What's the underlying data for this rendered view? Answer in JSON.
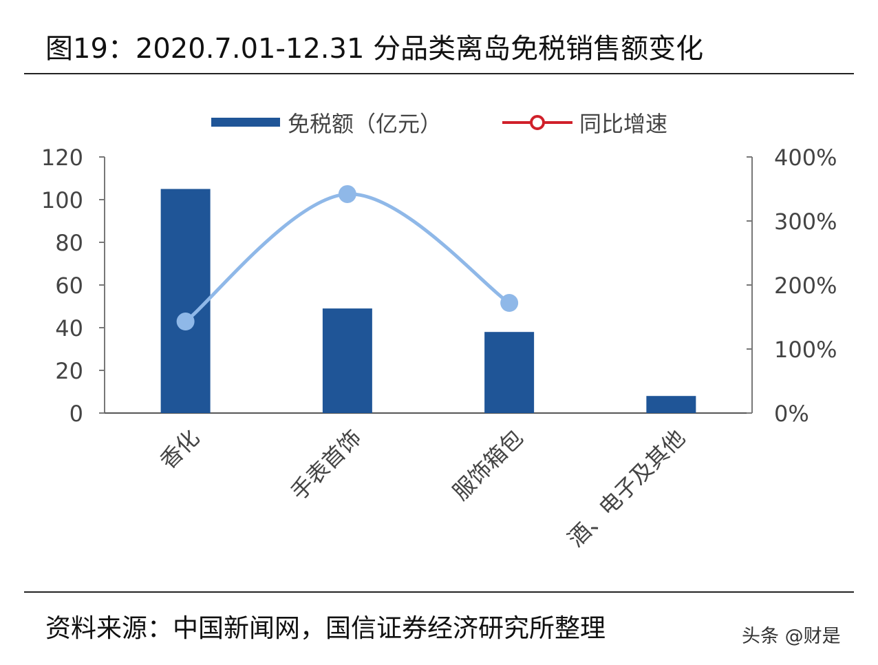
{
  "title": "图19：2020.7.01-12.31 分品类离岛免税销售额变化",
  "source": "资料来源：中国新闻网，国信证券经济研究所整理",
  "watermark": "头条 @财是",
  "chart_data": {
    "type": "bar",
    "categories": [
      "香化",
      "手表首饰",
      "服饰箱包",
      "酒、电子及其他"
    ],
    "series": [
      {
        "name": "免税额（亿元）",
        "type": "bar",
        "axis": "left",
        "color": "#1f5597",
        "values": [
          105,
          49,
          38,
          8
        ]
      },
      {
        "name": "同比增速",
        "type": "line",
        "axis": "right",
        "color": "#8fb8e8",
        "values": [
          143,
          342,
          172,
          null
        ]
      }
    ],
    "y_left": {
      "range": [
        0,
        120
      ],
      "ticks": [
        "0",
        "20",
        "40",
        "60",
        "80",
        "100",
        "120"
      ]
    },
    "y_right": {
      "range": [
        0,
        400
      ],
      "unit": "%",
      "ticks": [
        "0%",
        "100%",
        "200%",
        "300%",
        "400%"
      ]
    },
    "legend": {
      "placement": "top",
      "line_legend_color": "#d0202a"
    },
    "grid": false
  }
}
